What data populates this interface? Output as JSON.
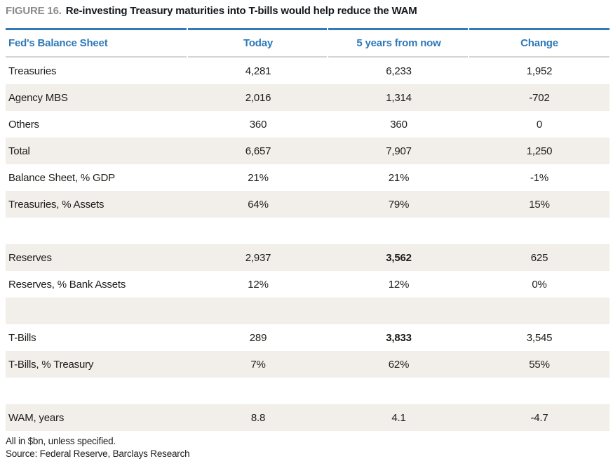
{
  "figure": {
    "label": "FIGURE 16.",
    "title": "Re-investing Treasury maturities into T-bills would help reduce the WAM"
  },
  "colors": {
    "accent_blue": "#2e79b8",
    "rule_blue": "#347ab4",
    "stripe_beige": "#f2eee9",
    "rule_gray": "#d7d5d1",
    "label_gray": "#8b8b8b"
  },
  "table": {
    "headers": [
      "Fed's Balance Sheet",
      "Today",
      "5 years from now",
      "Change"
    ],
    "rows": [
      {
        "label": "Treasuries",
        "today": "4,281",
        "future": "6,233",
        "change": "1,952"
      },
      {
        "label": "Agency MBS",
        "today": "2,016",
        "future": "1,314",
        "change": "-702"
      },
      {
        "label": "Others",
        "today": "360",
        "future": "360",
        "change": "0"
      },
      {
        "label": "Total",
        "today": "6,657",
        "future": "7,907",
        "change": "1,250"
      },
      {
        "label": "Balance Sheet, % GDP",
        "today": "21%",
        "future": "21%",
        "change": "-1%"
      },
      {
        "label": "Treasuries, % Assets",
        "today": "64%",
        "future": "79%",
        "change": "15%"
      },
      {
        "empty": true
      },
      {
        "label": "Reserves",
        "today": "2,937",
        "future": "3,562",
        "change": "625",
        "bold": "future"
      },
      {
        "label": "Reserves, % Bank Assets",
        "today": "12%",
        "future": "12%",
        "change": "0%"
      },
      {
        "empty": true
      },
      {
        "label": "T-Bills",
        "today": "289",
        "future": "3,833",
        "change": "3,545",
        "bold": "future"
      },
      {
        "label": "T-Bills, % Treasury",
        "today": "7%",
        "future": "62%",
        "change": "55%"
      },
      {
        "empty": true
      },
      {
        "label": "WAM, years",
        "today": "8.8",
        "future": "4.1",
        "change": "-4.7"
      }
    ]
  },
  "footnotes": {
    "line1": "All in $bn, unless specified.",
    "line2": "Source: Federal Reserve, Barclays Research"
  }
}
